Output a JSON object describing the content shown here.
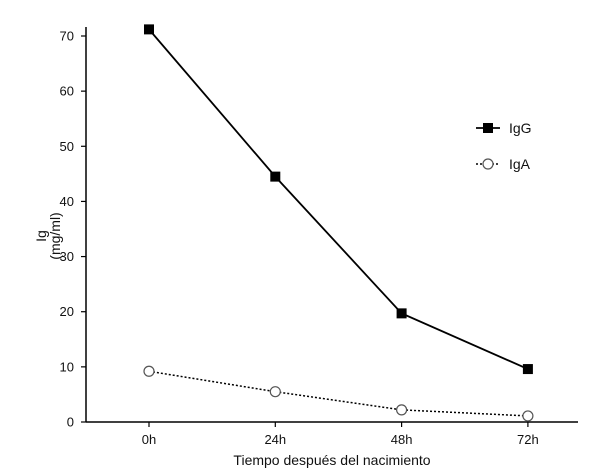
{
  "chart_data": {
    "type": "line",
    "categories": [
      "0h",
      "24h",
      "48h",
      "72h"
    ],
    "xlabel": "Tiempo después del nacimiento",
    "ylabel": "Ig",
    "ylabel_unit": "(mg/ml)",
    "ylim": [
      0,
      70
    ],
    "yticks": [
      "0",
      "10",
      "20",
      "30",
      "40",
      "50",
      "60",
      "70"
    ],
    "grid": false,
    "legend_position": "right",
    "series": [
      {
        "name": "IgG",
        "values": [
          71.2,
          44.5,
          19.7,
          9.6
        ],
        "color": "#000000",
        "line_style": "solid",
        "marker": "filled-square"
      },
      {
        "name": "IgA",
        "values": [
          9.2,
          5.5,
          2.2,
          1.1
        ],
        "color": "#000000",
        "line_style": "dotted",
        "marker": "open-circle"
      }
    ]
  }
}
